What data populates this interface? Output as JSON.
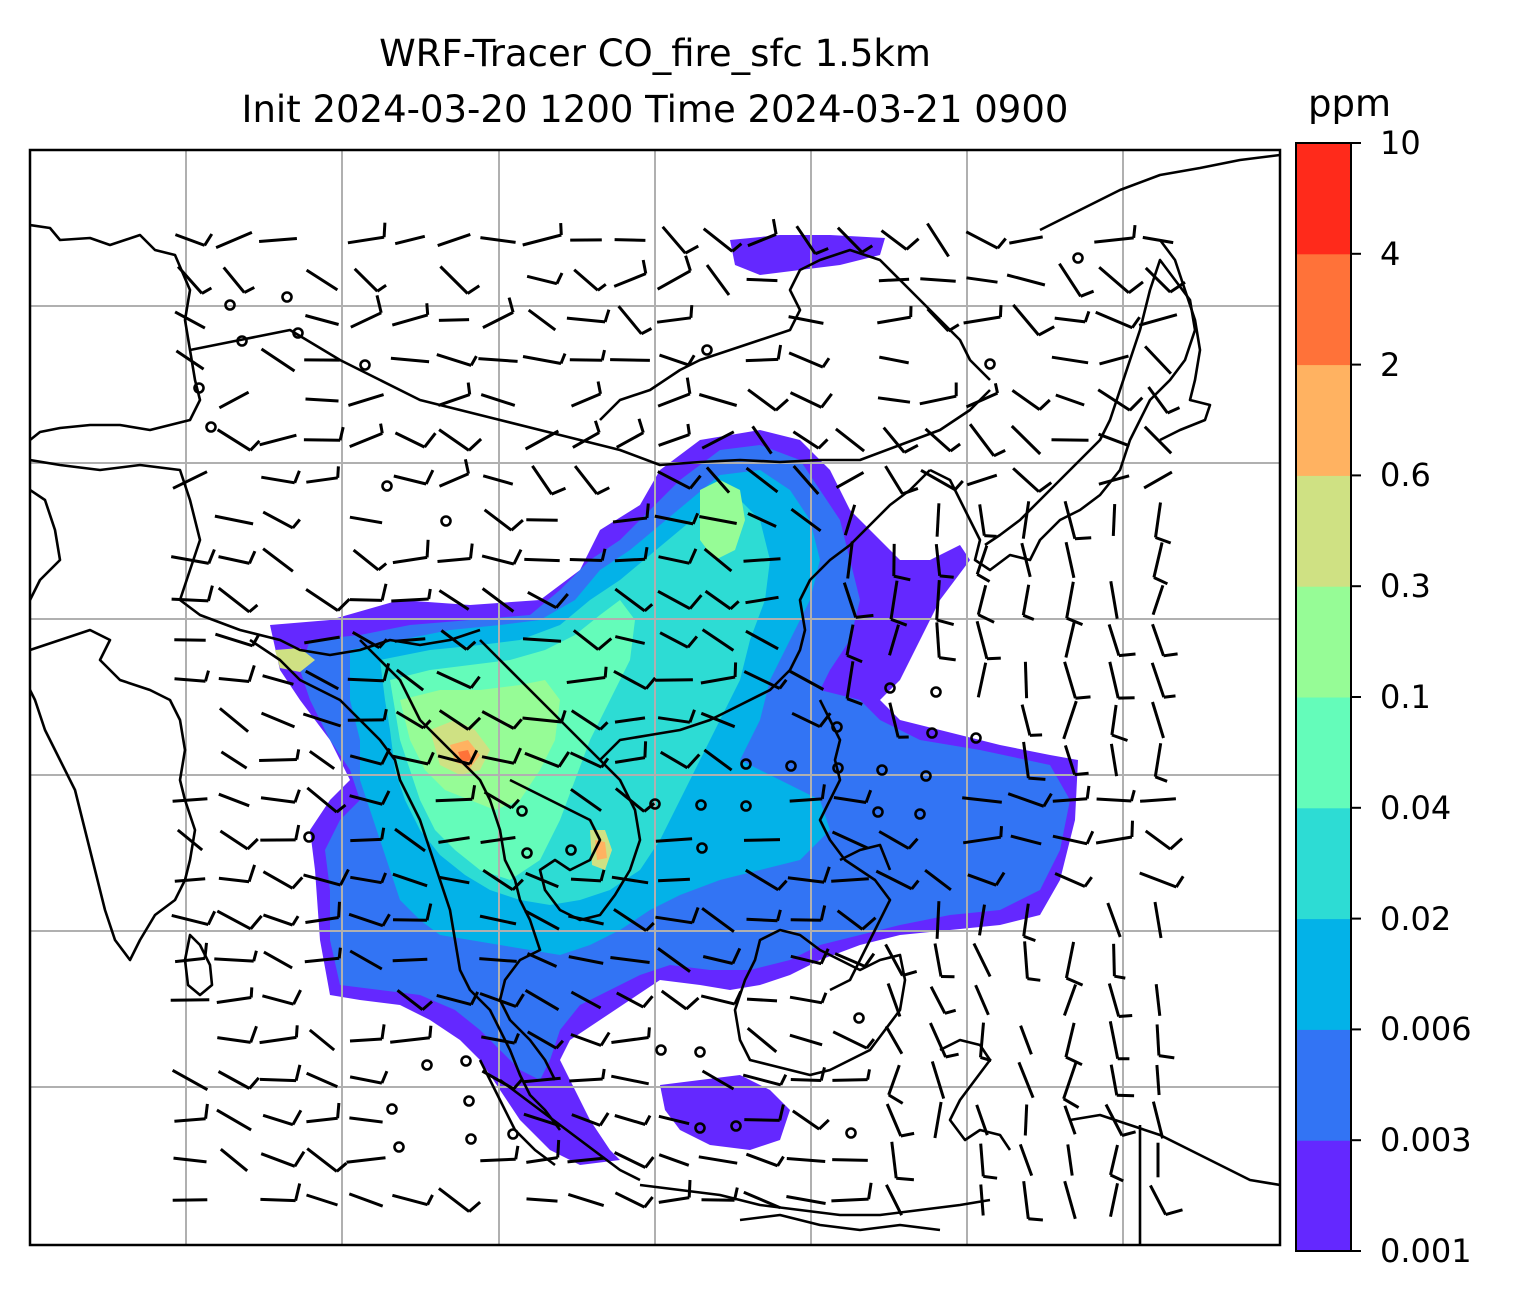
{
  "title": {
    "line1": "WRF-Tracer CO_fire_sfc 1.5km",
    "line2": "Init 2024-03-20 1200 Time 2024-03-21 0900"
  },
  "colorbar": {
    "unit": "ppm",
    "levels": [
      "0.001",
      "0.003",
      "0.006",
      "0.02",
      "0.04",
      "0.1",
      "0.3",
      "0.6",
      "2",
      "4",
      "10"
    ],
    "colors": [
      "#6428ff",
      "#3274f4",
      "#03b2e8",
      "#2ddcd4",
      "#64fcba",
      "#96fc96",
      "#cfe183",
      "#ffb261",
      "#ff7239",
      "#ff2a1b"
    ]
  },
  "map": {
    "coastline_color": "#000000",
    "gridline_color": "#b0b0b0",
    "wind_barb_color": "#000000"
  }
}
